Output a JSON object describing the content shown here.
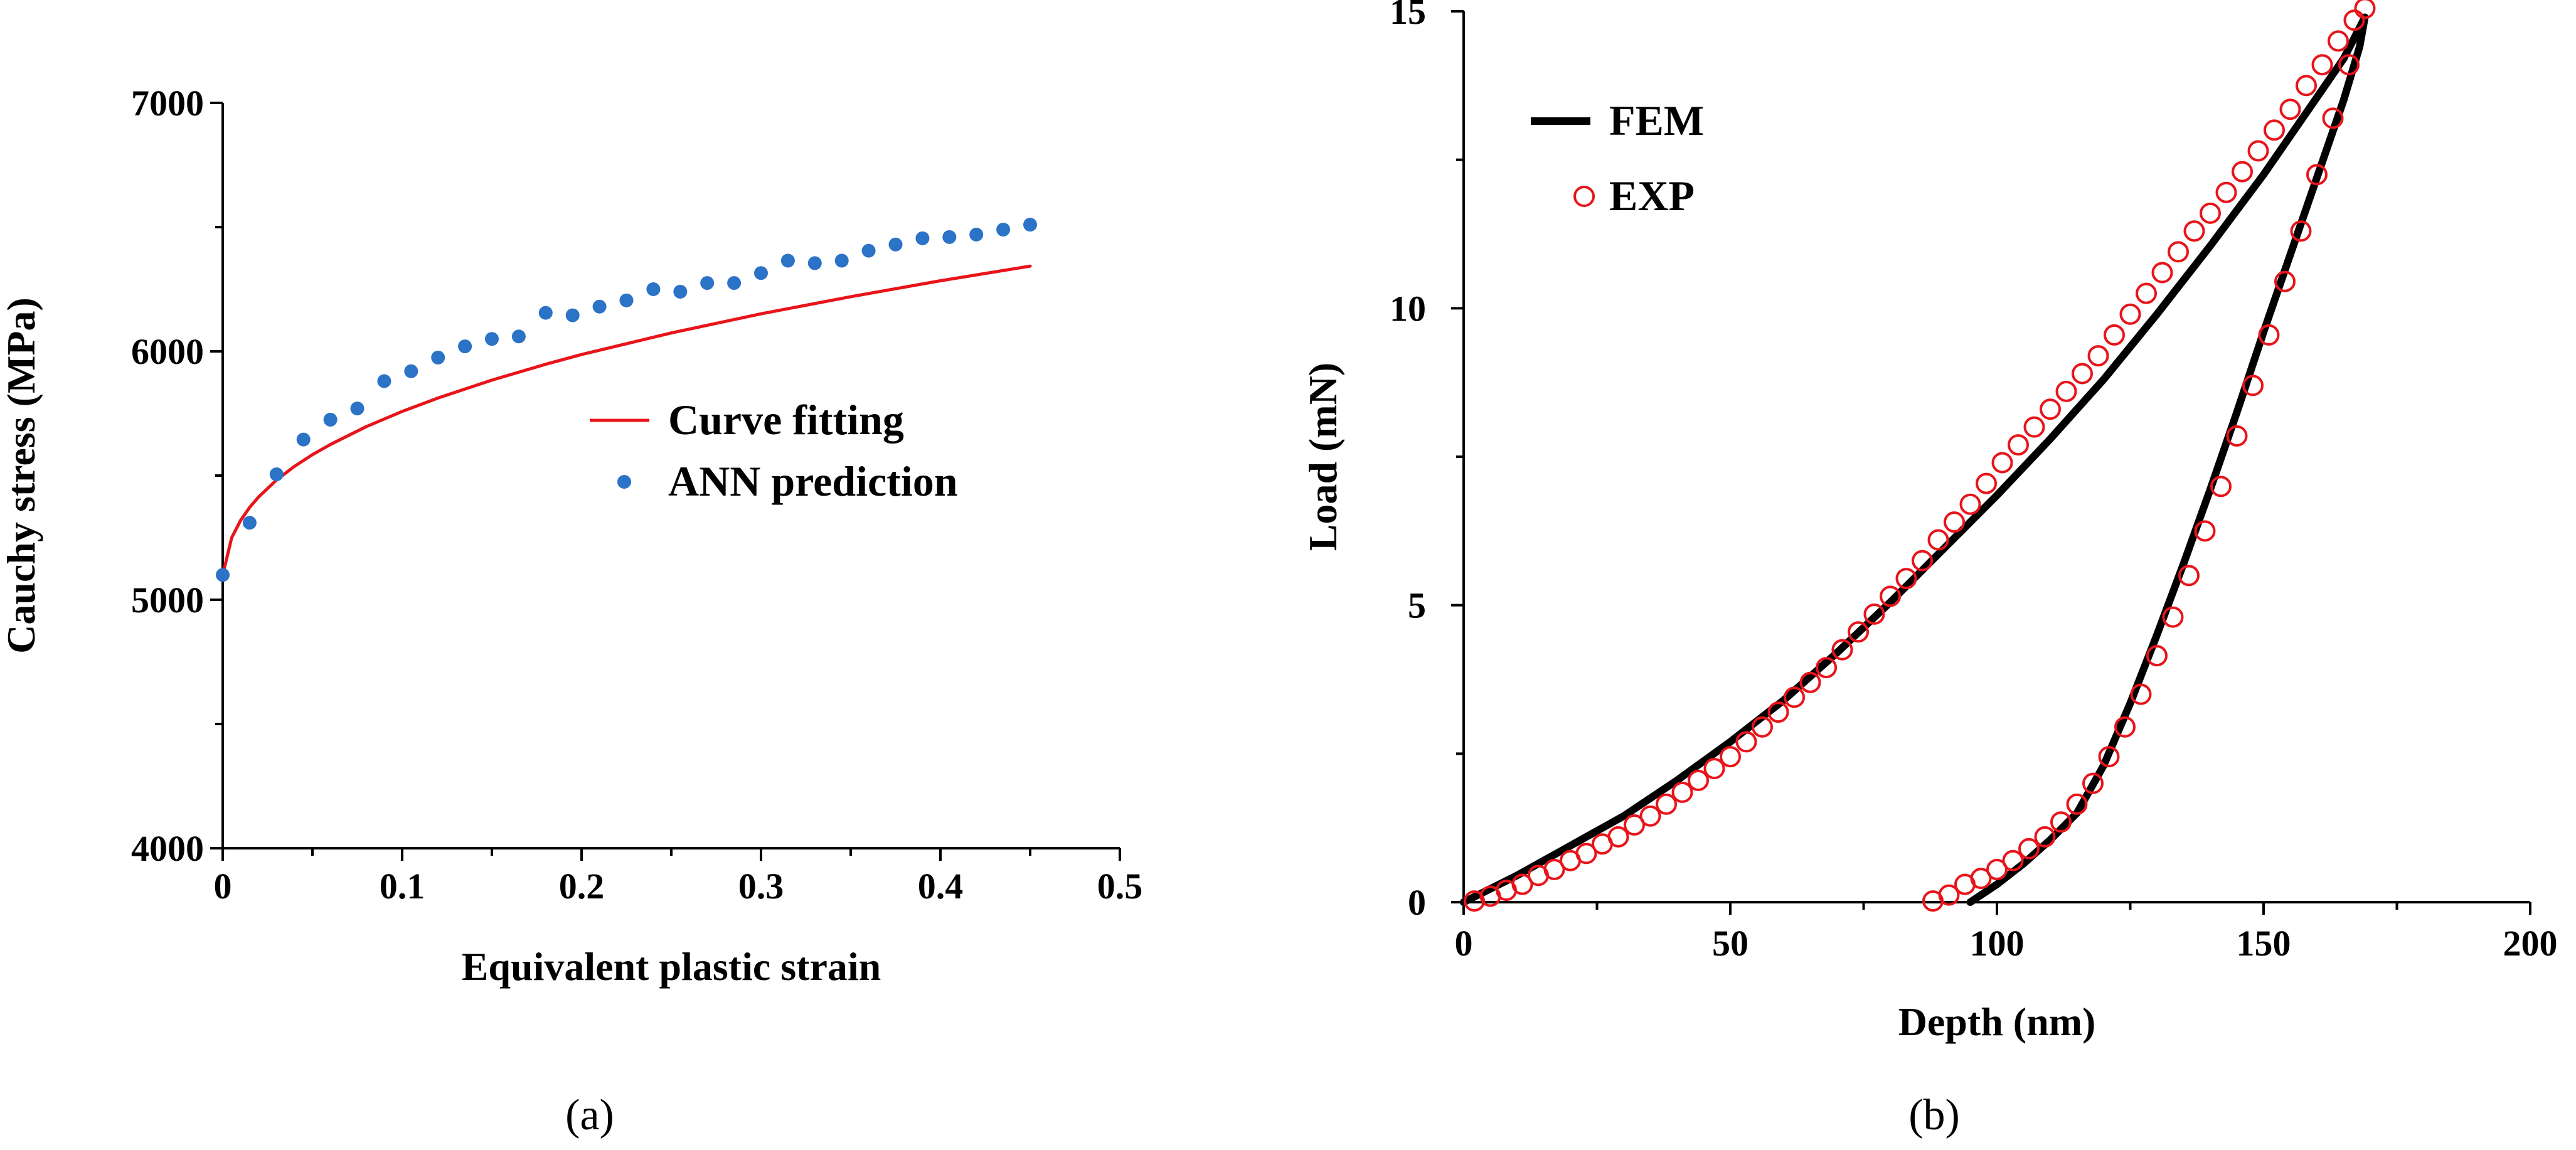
{
  "chart_data": [
    {
      "type": "scatter",
      "panel_label": "(a)",
      "xlabel": "Equivalent plastic strain",
      "ylabel": "Cauchy stress (MPa)",
      "xlim": [
        0,
        0.5
      ],
      "ylim": [
        4000,
        7000
      ],
      "xticks": [
        0,
        0.1,
        0.2,
        0.3,
        0.4,
        0.5
      ],
      "yticks": [
        4000,
        5000,
        6000,
        7000
      ],
      "xtick_labels": [
        "0",
        "0.1",
        "0.2",
        "0.3",
        "0.4",
        "0.5"
      ],
      "ytick_labels": [
        "4000",
        "5000",
        "6000",
        "7000"
      ],
      "grid": false,
      "legend_position": "center-right",
      "series": [
        {
          "name": "Curve fitting",
          "kind": "line",
          "color": "#e8141a",
          "x": [
            0,
            0.005,
            0.01,
            0.015,
            0.02,
            0.03,
            0.04,
            0.05,
            0.06,
            0.08,
            0.1,
            0.12,
            0.15,
            0.18,
            0.2,
            0.25,
            0.3,
            0.35,
            0.4,
            0.45
          ],
          "y": [
            5100,
            5250,
            5320,
            5372,
            5414,
            5482,
            5537,
            5584,
            5625,
            5697,
            5758,
            5812,
            5884,
            5948,
            5987,
            6074,
            6151,
            6220,
            6284,
            6343
          ]
        },
        {
          "name": "ANN prediction",
          "kind": "scatter",
          "color": "#2b73c6",
          "x": [
            0,
            0.015,
            0.03,
            0.045,
            0.06,
            0.075,
            0.09,
            0.105,
            0.12,
            0.135,
            0.15,
            0.165,
            0.18,
            0.195,
            0.21,
            0.225,
            0.24,
            0.255,
            0.27,
            0.285,
            0.3,
            0.315,
            0.33,
            0.345,
            0.36,
            0.375,
            0.39,
            0.405,
            0.42,
            0.435,
            0.45
          ],
          "y": [
            5100,
            5310,
            5505,
            5645,
            5725,
            5770,
            5880,
            5920,
            5975,
            6020,
            6050,
            6060,
            6155,
            6145,
            6180,
            6205,
            6250,
            6240,
            6275,
            6275,
            6315,
            6365,
            6355,
            6365,
            6405,
            6430,
            6455,
            6460,
            6470,
            6490,
            6510
          ]
        }
      ]
    },
    {
      "type": "scatter",
      "panel_label": "(b)",
      "xlabel": "Depth (nm)",
      "ylabel": "Load (mN)",
      "xlim": [
        0,
        200
      ],
      "ylim": [
        0,
        15
      ],
      "xticks": [
        0,
        50,
        100,
        150,
        200
      ],
      "yticks": [
        0,
        5,
        10,
        15
      ],
      "xtick_labels": [
        "0",
        "50",
        "100",
        "150",
        "200"
      ],
      "ytick_labels": [
        "0",
        "5",
        "10",
        "15"
      ],
      "grid": false,
      "legend_position": "top-left",
      "series": [
        {
          "name": "FEM",
          "kind": "line",
          "color": "#000000",
          "x": [
            0,
            10,
            20,
            30,
            40,
            50,
            60,
            70,
            80,
            90,
            100,
            110,
            120,
            130,
            140,
            150,
            160,
            165,
            169,
            168,
            165,
            160,
            155,
            150,
            145,
            140,
            135,
            130,
            125,
            120,
            115,
            110,
            105,
            100,
            95
          ],
          "y": [
            0,
            0.45,
            0.95,
            1.45,
            2.05,
            2.7,
            3.4,
            4.2,
            5.05,
            5.95,
            6.85,
            7.8,
            8.8,
            9.9,
            11.05,
            12.25,
            13.55,
            14.2,
            14.9,
            14.4,
            13.5,
            12.2,
            10.9,
            9.6,
            8.25,
            6.95,
            5.7,
            4.5,
            3.35,
            2.3,
            1.5,
            1.05,
            0.65,
            0.3,
            0
          ]
        },
        {
          "name": "EXP",
          "kind": "scatter",
          "color": "#e8141a",
          "x": [
            2,
            5,
            8,
            11,
            14,
            17,
            20,
            23,
            26,
            29,
            32,
            35,
            38,
            41,
            44,
            47,
            50,
            53,
            56,
            59,
            62,
            65,
            68,
            71,
            74,
            77,
            80,
            83,
            86,
            89,
            92,
            95,
            98,
            101,
            104,
            107,
            110,
            113,
            116,
            119,
            122,
            125,
            128,
            131,
            134,
            137,
            140,
            143,
            146,
            149,
            152,
            155,
            158,
            161,
            164,
            167,
            169,
            166,
            163,
            160,
            157,
            154,
            151,
            148,
            145,
            142,
            139,
            136,
            133,
            130,
            127,
            124,
            121,
            118,
            115,
            112,
            109,
            106,
            103,
            100,
            97,
            94,
            91,
            88
          ],
          "y": [
            0.02,
            0.1,
            0.2,
            0.3,
            0.45,
            0.55,
            0.7,
            0.82,
            0.98,
            1.1,
            1.3,
            1.45,
            1.65,
            1.85,
            2.05,
            2.25,
            2.45,
            2.7,
            2.95,
            3.2,
            3.45,
            3.7,
            3.95,
            4.25,
            4.55,
            4.85,
            5.15,
            5.45,
            5.75,
            6.1,
            6.4,
            6.7,
            7.05,
            7.4,
            7.7,
            8.0,
            8.3,
            8.6,
            8.9,
            9.2,
            9.55,
            9.9,
            10.25,
            10.6,
            10.95,
            11.3,
            11.6,
            11.95,
            12.3,
            12.65,
            13.0,
            13.35,
            13.75,
            14.1,
            14.5,
            14.85,
            15.05,
            14.1,
            13.2,
            12.25,
            11.3,
            10.45,
            9.55,
            8.7,
            7.85,
            7.0,
            6.25,
            5.5,
            4.8,
            4.15,
            3.5,
            2.95,
            2.45,
            2.0,
            1.65,
            1.35,
            1.1,
            0.9,
            0.7,
            0.55,
            0.4,
            0.3,
            0.12,
            0.02
          ]
        }
      ]
    }
  ]
}
